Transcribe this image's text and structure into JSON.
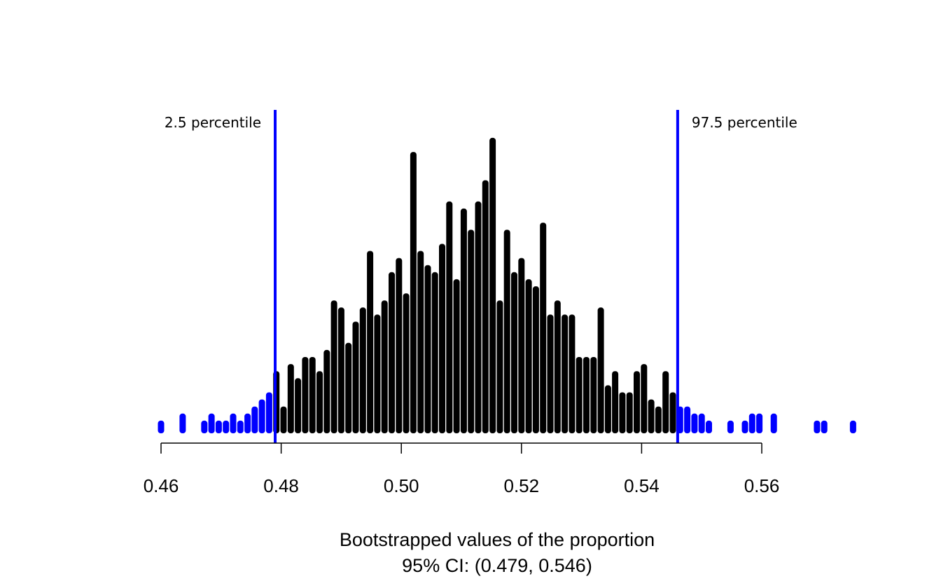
{
  "chart_data": {
    "type": "bar",
    "title": "",
    "xlabel": "Bootstrapped values of the proportion",
    "subtitle": "95% CI: (0.479, 0.546)",
    "ylabel": "",
    "xlim": [
      0.46,
      0.575
    ],
    "ylim": [
      0,
      40
    ],
    "grid": false,
    "x_ticks": [
      "0.46",
      "0.48",
      "0.50",
      "0.52",
      "0.54",
      "0.56"
    ],
    "x_tick_values": [
      0.46,
      0.48,
      0.5,
      0.52,
      0.54,
      0.56
    ],
    "lower_percentile": {
      "value": 0.479,
      "label": "2.5 percentile"
    },
    "upper_percentile": {
      "value": 0.546,
      "label": "97.5 percentile"
    },
    "colors": {
      "inside": "#000000",
      "outside": "#0000ff",
      "cutoff_line": "#0000ff"
    },
    "x": [
      0.46,
      0.4636,
      0.4672,
      0.4684,
      0.4696,
      0.4708,
      0.472,
      0.4732,
      0.4744,
      0.4756,
      0.4768,
      0.478,
      0.4792,
      0.4804,
      0.4816,
      0.4828,
      0.484,
      0.4852,
      0.4864,
      0.4876,
      0.4888,
      0.49,
      0.4912,
      0.4924,
      0.4936,
      0.4948,
      0.496,
      0.4972,
      0.4984,
      0.4996,
      0.5008,
      0.502,
      0.5032,
      0.5044,
      0.5056,
      0.5068,
      0.508,
      0.5092,
      0.5104,
      0.5116,
      0.5128,
      0.514,
      0.5152,
      0.5164,
      0.5176,
      0.5188,
      0.52,
      0.5212,
      0.5224,
      0.5236,
      0.5248,
      0.526,
      0.5272,
      0.5284,
      0.5296,
      0.5308,
      0.532,
      0.5332,
      0.5344,
      0.5356,
      0.5368,
      0.538,
      0.5392,
      0.5404,
      0.5416,
      0.5428,
      0.544,
      0.5452,
      0.5464,
      0.5476,
      0.5488,
      0.55,
      0.5512,
      0.5548,
      0.5572,
      0.5584,
      0.5596,
      0.562,
      0.5692,
      0.5704,
      0.5752
    ],
    "values": [
      1,
      2,
      1,
      2,
      1,
      1,
      2,
      1,
      2,
      3,
      4,
      5,
      8,
      3,
      9,
      7,
      10,
      10,
      8,
      11,
      18,
      17,
      12,
      15,
      17,
      25,
      16,
      18,
      22,
      24,
      19,
      39,
      25,
      23,
      22,
      26,
      32,
      21,
      31,
      28,
      32,
      35,
      41,
      18,
      28,
      22,
      24,
      21,
      20,
      29,
      16,
      18,
      16,
      16,
      10,
      10,
      10,
      17,
      6,
      8,
      5,
      5,
      8,
      9,
      4,
      3,
      8,
      5,
      3,
      3,
      2,
      2,
      1,
      1,
      1,
      2,
      2,
      2,
      1,
      1,
      1
    ]
  }
}
